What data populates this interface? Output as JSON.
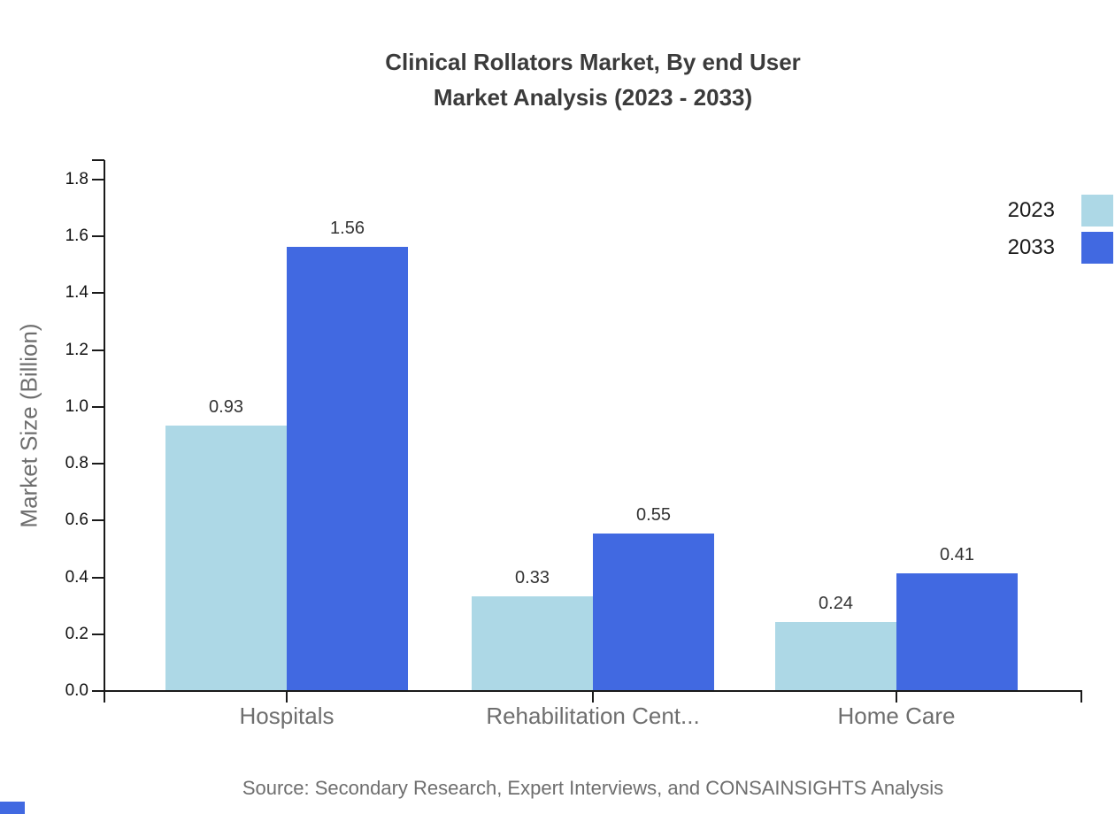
{
  "title": {
    "line1": "Clinical Rollators Market, By end User",
    "line2": "Market Analysis (2023 - 2033)"
  },
  "y_axis": {
    "label": "Market Size (Billion)"
  },
  "legend": {
    "entries": [
      {
        "label": "2023",
        "color": "#ADD8E6"
      },
      {
        "label": "2033",
        "color": "#4169E1"
      }
    ]
  },
  "source": "Source: Secondary Research, Expert Interviews, and CONSAINSIGHTS Analysis",
  "colors": {
    "series_2023": "#ADD8E6",
    "series_2033": "#4169E1",
    "axis": "#1a1a1a",
    "muted_text": "#6e6e6e",
    "title_text": "#3b3b3b",
    "value_text": "#333333"
  },
  "chart_data": {
    "type": "bar",
    "title": "Clinical Rollators Market, By end User Market Analysis (2023 - 2033)",
    "categories": [
      "Hospitals",
      "Rehabilitation Cent...",
      "Home Care"
    ],
    "series": [
      {
        "name": "2023",
        "color": "#ADD8E6",
        "values": [
          0.93,
          0.33,
          0.24
        ]
      },
      {
        "name": "2033",
        "color": "#4169E1",
        "values": [
          1.56,
          0.55,
          0.41
        ]
      }
    ],
    "value_labels": [
      "0.93",
      "1.56",
      "0.33",
      "0.55",
      "0.24",
      "0.41"
    ],
    "xlabel": "",
    "ylabel": "Market Size (Billion)",
    "ylim": [
      0,
      1.8
    ],
    "ytick_step": 0.2,
    "grid": false,
    "legend_position": "top-right"
  }
}
